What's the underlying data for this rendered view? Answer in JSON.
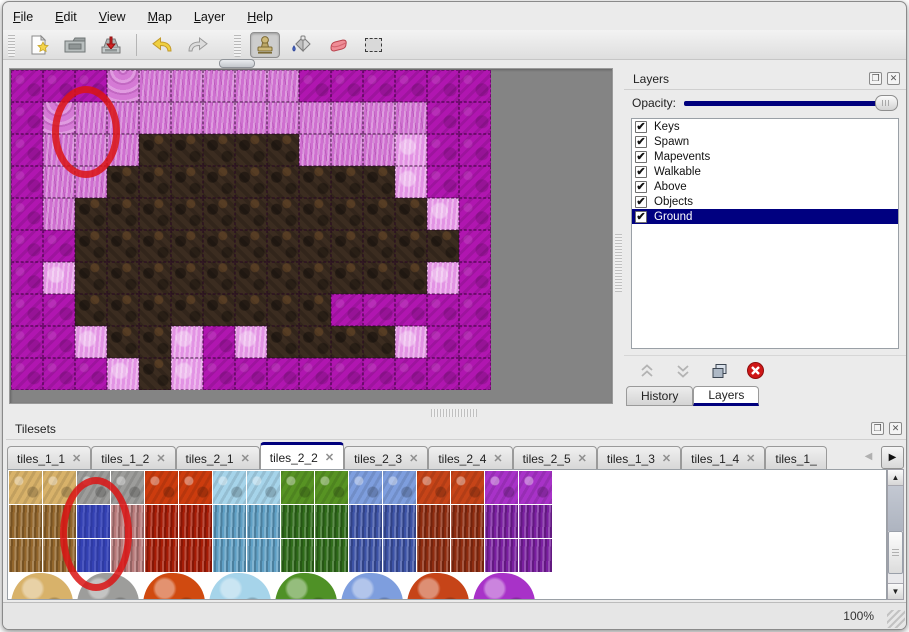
{
  "window": {
    "background": "#ebebeb",
    "accent_navy": "#000080",
    "annotation_red": "#da1414"
  },
  "menu_bar": {
    "items": [
      {
        "label": "File"
      },
      {
        "label": "Edit"
      },
      {
        "label": "View"
      },
      {
        "label": "Map"
      },
      {
        "label": "Layer"
      },
      {
        "label": "Help"
      }
    ]
  },
  "toolbar": {
    "buttons": [
      {
        "name": "new",
        "icon": "new-file-icon"
      },
      {
        "name": "open",
        "icon": "open-folder-icon"
      },
      {
        "name": "save",
        "icon": "save-icon"
      },
      {
        "name": "undo",
        "icon": "undo-arrow-icon"
      },
      {
        "name": "redo",
        "icon": "redo-arrow-icon"
      },
      {
        "name": "stamp",
        "icon": "stamp-tool-icon",
        "active": true
      },
      {
        "name": "fill",
        "icon": "paint-bucket-icon"
      },
      {
        "name": "eraser",
        "icon": "eraser-icon"
      },
      {
        "name": "select",
        "icon": "rect-select-icon"
      }
    ]
  },
  "map_view": {
    "tile_size": 32,
    "columns": 15,
    "rows": 10,
    "legend": {
      "d": "dark-magenta-ground",
      "s": "light-scale-tile",
      "l": "light-pink-fur",
      "b": "bright-pink-fur",
      "B": "brown-rock"
    },
    "grid": [
      "dddsllllldddddd",
      "dsllllllllllldd",
      "dlllBBBBBlllbdd",
      "dllBBBBBBBBBbdd",
      "dlBBBBBBBBBBBbd",
      "ddBBBBBBBBBBBBd",
      "dbBBBBBBBBBBBbd",
      "ddBBBBBBBBddddd",
      "ddbBBbdbBBBBbdd",
      "dddbBbddddddddd"
    ],
    "tile_colors": {
      "d": "#b016b0",
      "s": "#d57ad5",
      "l": "#cf6fd0",
      "b": "#e393e4",
      "B": "#3b2c20"
    }
  },
  "layers_panel": {
    "title": "Layers",
    "float_icon": "float-panel-icon",
    "close_icon": "close-panel-icon",
    "opacity_label": "Opacity:",
    "opacity_percent": 100,
    "layers": [
      {
        "name": "Keys",
        "visible": true,
        "selected": false
      },
      {
        "name": "Spawn",
        "visible": true,
        "selected": false
      },
      {
        "name": "Mapevents",
        "visible": true,
        "selected": false
      },
      {
        "name": "Walkable",
        "visible": true,
        "selected": false
      },
      {
        "name": "Above",
        "visible": true,
        "selected": false
      },
      {
        "name": "Objects",
        "visible": true,
        "selected": false
      },
      {
        "name": "Ground",
        "visible": true,
        "selected": true
      }
    ],
    "buttons": [
      {
        "name": "raise-layer",
        "icon": "chevron-double-up-icon",
        "enabled": false
      },
      {
        "name": "lower-layer",
        "icon": "chevron-double-down-icon",
        "enabled": false
      },
      {
        "name": "duplicate-layer",
        "icon": "copy-layer-icon",
        "enabled": true
      },
      {
        "name": "delete-layer",
        "icon": "delete-circle-icon",
        "enabled": true
      }
    ],
    "tabs": [
      {
        "label": "History",
        "active": false
      },
      {
        "label": "Layers",
        "active": true
      }
    ]
  },
  "tilesets_panel": {
    "title": "Tilesets",
    "float_icon": "float-panel-icon",
    "close_icon": "close-panel-icon",
    "tabs": [
      {
        "label": "tiles_1_1"
      },
      {
        "label": "tiles_1_2"
      },
      {
        "label": "tiles_2_1"
      },
      {
        "label": "tiles_2_2",
        "active": true
      },
      {
        "label": "tiles_2_3"
      },
      {
        "label": "tiles_2_4"
      },
      {
        "label": "tiles_2_5"
      },
      {
        "label": "tiles_1_3"
      },
      {
        "label": "tiles_1_4"
      },
      {
        "label": "tiles_1_",
        "clipped": true
      }
    ],
    "columns": [
      {
        "top": "#d8b26a",
        "mid": "#93662c"
      },
      {
        "top": "#d8b26a",
        "mid": "#93662c"
      },
      {
        "top": "#9d9d9b",
        "mid": "#383d96"
      },
      {
        "top": "#9d9d9b",
        "mid": "#b97b7b"
      },
      {
        "top": "#cc3c0e",
        "mid": "#a61c06"
      },
      {
        "top": "#cc3c0e",
        "mid": "#a61c06"
      },
      {
        "top": "#a6d4ea",
        "mid": "#5f9fc4"
      },
      {
        "top": "#a6d4ea",
        "mid": "#5f9fc4"
      },
      {
        "top": "#579323",
        "mid": "#2f6b1a"
      },
      {
        "top": "#579323",
        "mid": "#2f6b1a"
      },
      {
        "top": "#7e9ede",
        "mid": "#3d53a6"
      },
      {
        "top": "#7e9ede",
        "mid": "#3d53a6"
      },
      {
        "top": "#c64418",
        "mid": "#8e2c10"
      },
      {
        "top": "#c64418",
        "mid": "#8e2c10"
      },
      {
        "top": "#a832c8",
        "mid": "#7a1fa0"
      },
      {
        "top": "#a832c8",
        "mid": "#7a1fa0"
      }
    ],
    "blobs": [
      "#d8b26a",
      "#9d9d9b",
      "#d04a10",
      "#a6d4ea",
      "#4f9126",
      "#7e9ede",
      "#c64418",
      "#a832c8"
    ],
    "selection": {
      "column": 2,
      "rows": [
        1,
        2
      ]
    }
  },
  "status_bar": {
    "zoom_level": "100%"
  }
}
